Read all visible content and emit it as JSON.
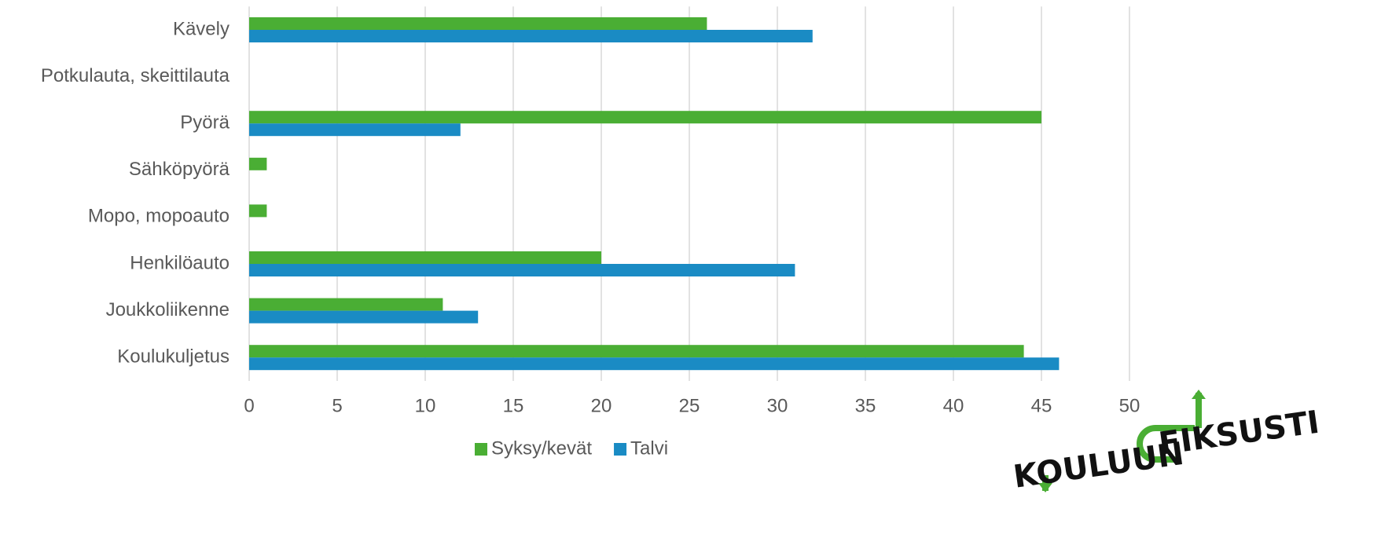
{
  "chart_data": {
    "type": "barh",
    "categories": [
      "Kävely",
      "Potkulauta, skeittilauta",
      "Pyörä",
      "Sähköpyörä",
      "Mopo, mopoauto",
      "Henkilöauto",
      "Joukkoliikenne",
      "Koulukuljetus"
    ],
    "series": [
      {
        "name": "Syksy/kevät",
        "color": "#4aae34",
        "values": [
          26,
          0,
          45,
          1,
          1,
          20,
          11,
          44
        ]
      },
      {
        "name": "Talvi",
        "color": "#1a8bc4",
        "values": [
          32,
          0,
          12,
          0,
          0,
          31,
          13,
          46
        ]
      }
    ],
    "xlim": [
      0,
      50
    ],
    "xticks": [
      0,
      5,
      10,
      15,
      20,
      25,
      30,
      35,
      40,
      45,
      50
    ],
    "grid": true,
    "legend": "bottom"
  },
  "logo": {
    "line1": "FIKSUSTI",
    "line2": "KOULUUN"
  }
}
